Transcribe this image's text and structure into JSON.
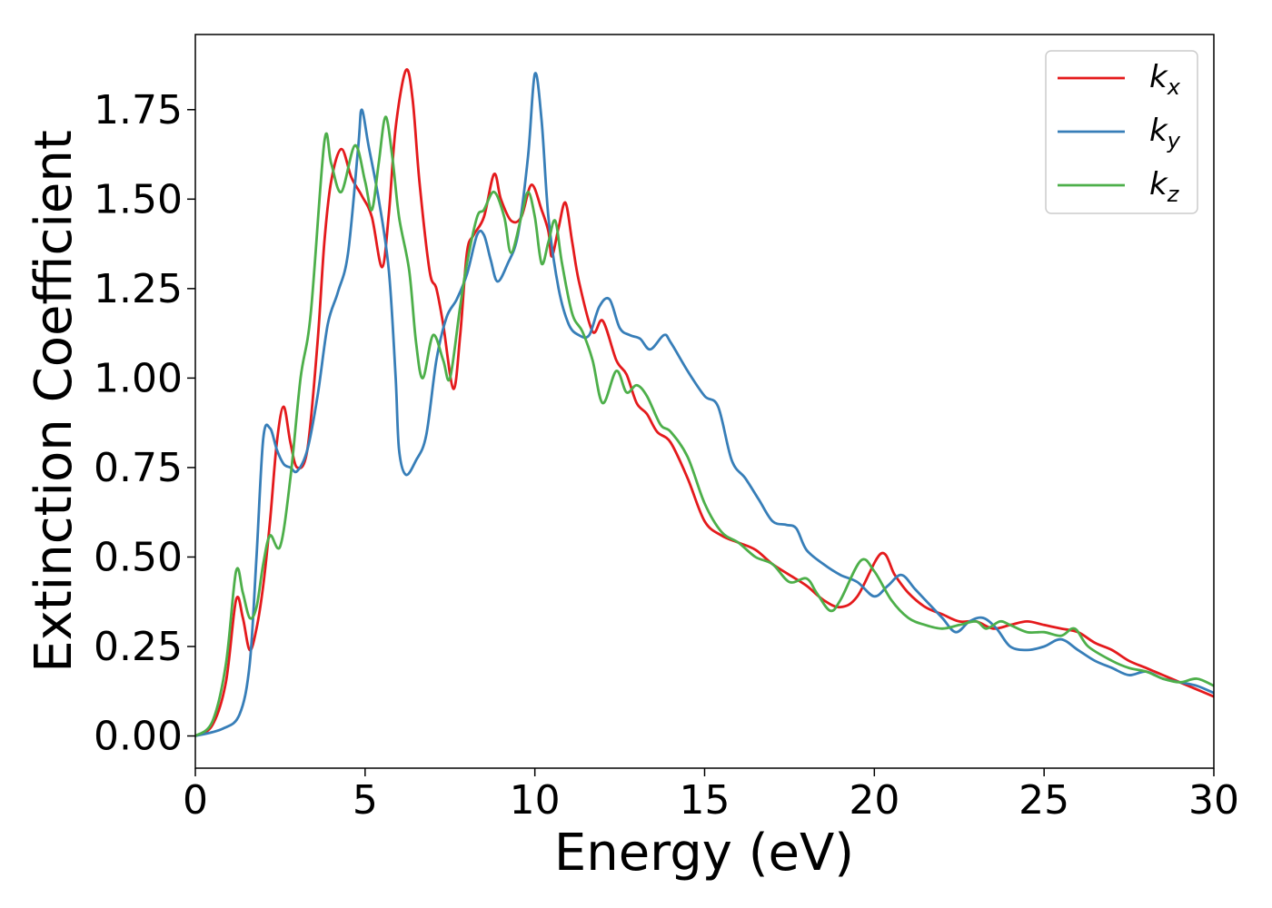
{
  "chart_data": {
    "type": "line",
    "title": "",
    "xlabel": "Energy (eV)",
    "ylabel": "Extinction Coefficient",
    "xlim": [
      0,
      30
    ],
    "ylim": [
      -0.09,
      1.96
    ],
    "xticks": [
      0,
      5,
      10,
      15,
      20,
      25,
      30
    ],
    "xtick_labels": [
      "0",
      "5",
      "10",
      "15",
      "20",
      "25",
      "30"
    ],
    "yticks": [
      0.0,
      0.25,
      0.5,
      0.75,
      1.0,
      1.25,
      1.5,
      1.75
    ],
    "ytick_labels": [
      "0.00",
      "0.25",
      "0.50",
      "0.75",
      "1.00",
      "1.25",
      "1.50",
      "1.75"
    ],
    "grid": false,
    "legend_position": "top-right",
    "series": [
      {
        "name": "k",
        "subscript": "x",
        "color": "#e41a1c",
        "points": [
          [
            0,
            0
          ],
          [
            0.5,
            0.03
          ],
          [
            0.9,
            0.15
          ],
          [
            1.2,
            0.38
          ],
          [
            1.4,
            0.33
          ],
          [
            1.6,
            0.24
          ],
          [
            1.8,
            0.3
          ],
          [
            2.0,
            0.42
          ],
          [
            2.2,
            0.6
          ],
          [
            2.4,
            0.82
          ],
          [
            2.6,
            0.92
          ],
          [
            2.8,
            0.82
          ],
          [
            3.0,
            0.75
          ],
          [
            3.3,
            0.8
          ],
          [
            3.6,
            1.1
          ],
          [
            3.8,
            1.38
          ],
          [
            4.0,
            1.55
          ],
          [
            4.3,
            1.64
          ],
          [
            4.6,
            1.56
          ],
          [
            4.9,
            1.51
          ],
          [
            5.2,
            1.45
          ],
          [
            5.5,
            1.31
          ],
          [
            5.7,
            1.46
          ],
          [
            5.9,
            1.7
          ],
          [
            6.2,
            1.86
          ],
          [
            6.4,
            1.78
          ],
          [
            6.6,
            1.55
          ],
          [
            6.9,
            1.3
          ],
          [
            7.1,
            1.25
          ],
          [
            7.3,
            1.15
          ],
          [
            7.6,
            0.97
          ],
          [
            7.8,
            1.12
          ],
          [
            8.0,
            1.35
          ],
          [
            8.2,
            1.4
          ],
          [
            8.5,
            1.45
          ],
          [
            8.8,
            1.57
          ],
          [
            9.0,
            1.5
          ],
          [
            9.3,
            1.44
          ],
          [
            9.6,
            1.45
          ],
          [
            9.9,
            1.54
          ],
          [
            10.2,
            1.47
          ],
          [
            10.4,
            1.41
          ],
          [
            10.5,
            1.34
          ],
          [
            10.7,
            1.42
          ],
          [
            10.9,
            1.49
          ],
          [
            11.1,
            1.38
          ],
          [
            11.3,
            1.27
          ],
          [
            11.7,
            1.13
          ],
          [
            12.0,
            1.16
          ],
          [
            12.4,
            1.05
          ],
          [
            12.7,
            1.01
          ],
          [
            13.0,
            0.93
          ],
          [
            13.3,
            0.9
          ],
          [
            13.6,
            0.85
          ],
          [
            14.0,
            0.82
          ],
          [
            14.5,
            0.72
          ],
          [
            15.0,
            0.6
          ],
          [
            15.5,
            0.56
          ],
          [
            16.0,
            0.54
          ],
          [
            16.5,
            0.52
          ],
          [
            17.0,
            0.48
          ],
          [
            17.5,
            0.45
          ],
          [
            18.0,
            0.42
          ],
          [
            18.5,
            0.38
          ],
          [
            19.0,
            0.36
          ],
          [
            19.5,
            0.39
          ],
          [
            20.2,
            0.51
          ],
          [
            20.6,
            0.45
          ],
          [
            21.0,
            0.4
          ],
          [
            21.5,
            0.36
          ],
          [
            22.0,
            0.34
          ],
          [
            22.5,
            0.32
          ],
          [
            23.0,
            0.32
          ],
          [
            23.5,
            0.3
          ],
          [
            24.0,
            0.31
          ],
          [
            24.5,
            0.32
          ],
          [
            25.0,
            0.31
          ],
          [
            25.5,
            0.3
          ],
          [
            26.0,
            0.29
          ],
          [
            26.5,
            0.26
          ],
          [
            27.0,
            0.24
          ],
          [
            27.5,
            0.21
          ],
          [
            28.0,
            0.19
          ],
          [
            28.5,
            0.17
          ],
          [
            29.0,
            0.15
          ],
          [
            29.5,
            0.13
          ],
          [
            30.0,
            0.11
          ]
        ]
      },
      {
        "name": "k",
        "subscript": "y",
        "color": "#377eb8",
        "points": [
          [
            0,
            0
          ],
          [
            0.8,
            0.02
          ],
          [
            1.3,
            0.06
          ],
          [
            1.6,
            0.2
          ],
          [
            1.8,
            0.5
          ],
          [
            2.0,
            0.83
          ],
          [
            2.2,
            0.86
          ],
          [
            2.4,
            0.8
          ],
          [
            2.6,
            0.76
          ],
          [
            2.8,
            0.75
          ],
          [
            3.0,
            0.74
          ],
          [
            3.3,
            0.8
          ],
          [
            3.6,
            0.95
          ],
          [
            3.9,
            1.15
          ],
          [
            4.2,
            1.24
          ],
          [
            4.5,
            1.35
          ],
          [
            4.8,
            1.65
          ],
          [
            4.9,
            1.75
          ],
          [
            5.1,
            1.65
          ],
          [
            5.4,
            1.5
          ],
          [
            5.7,
            1.3
          ],
          [
            5.9,
            1.0
          ],
          [
            6.0,
            0.8
          ],
          [
            6.2,
            0.73
          ],
          [
            6.5,
            0.77
          ],
          [
            6.8,
            0.84
          ],
          [
            7.1,
            1.05
          ],
          [
            7.4,
            1.17
          ],
          [
            7.7,
            1.22
          ],
          [
            8.0,
            1.29
          ],
          [
            8.3,
            1.4
          ],
          [
            8.5,
            1.4
          ],
          [
            8.7,
            1.33
          ],
          [
            8.9,
            1.27
          ],
          [
            9.2,
            1.32
          ],
          [
            9.5,
            1.4
          ],
          [
            9.8,
            1.62
          ],
          [
            10.0,
            1.85
          ],
          [
            10.2,
            1.72
          ],
          [
            10.4,
            1.45
          ],
          [
            10.7,
            1.25
          ],
          [
            11.0,
            1.15
          ],
          [
            11.3,
            1.12
          ],
          [
            11.6,
            1.12
          ],
          [
            11.9,
            1.2
          ],
          [
            12.2,
            1.22
          ],
          [
            12.5,
            1.14
          ],
          [
            12.8,
            1.12
          ],
          [
            13.1,
            1.11
          ],
          [
            13.4,
            1.08
          ],
          [
            13.8,
            1.12
          ],
          [
            14.0,
            1.1
          ],
          [
            14.5,
            1.02
          ],
          [
            15.0,
            0.95
          ],
          [
            15.4,
            0.92
          ],
          [
            15.8,
            0.77
          ],
          [
            16.2,
            0.72
          ],
          [
            16.6,
            0.66
          ],
          [
            17.0,
            0.6
          ],
          [
            17.4,
            0.59
          ],
          [
            17.7,
            0.58
          ],
          [
            18.0,
            0.52
          ],
          [
            18.5,
            0.48
          ],
          [
            19.0,
            0.45
          ],
          [
            19.5,
            0.43
          ],
          [
            20.0,
            0.39
          ],
          [
            20.4,
            0.42
          ],
          [
            20.8,
            0.45
          ],
          [
            21.2,
            0.41
          ],
          [
            21.6,
            0.37
          ],
          [
            22.0,
            0.33
          ],
          [
            22.4,
            0.29
          ],
          [
            22.8,
            0.32
          ],
          [
            23.2,
            0.33
          ],
          [
            23.6,
            0.3
          ],
          [
            24.0,
            0.25
          ],
          [
            24.5,
            0.24
          ],
          [
            25.0,
            0.25
          ],
          [
            25.5,
            0.27
          ],
          [
            26.0,
            0.24
          ],
          [
            26.5,
            0.21
          ],
          [
            27.0,
            0.19
          ],
          [
            27.5,
            0.17
          ],
          [
            28.0,
            0.18
          ],
          [
            28.5,
            0.16
          ],
          [
            29.0,
            0.15
          ],
          [
            29.5,
            0.14
          ],
          [
            30.0,
            0.12
          ]
        ]
      },
      {
        "name": "k",
        "subscript": "z",
        "color": "#4daf4a",
        "points": [
          [
            0,
            0
          ],
          [
            0.5,
            0.04
          ],
          [
            0.9,
            0.2
          ],
          [
            1.2,
            0.46
          ],
          [
            1.4,
            0.4
          ],
          [
            1.6,
            0.33
          ],
          [
            1.8,
            0.36
          ],
          [
            2.0,
            0.48
          ],
          [
            2.2,
            0.56
          ],
          [
            2.5,
            0.53
          ],
          [
            2.8,
            0.72
          ],
          [
            3.1,
            1.0
          ],
          [
            3.4,
            1.18
          ],
          [
            3.8,
            1.66
          ],
          [
            4.0,
            1.6
          ],
          [
            4.3,
            1.52
          ],
          [
            4.7,
            1.65
          ],
          [
            5.0,
            1.55
          ],
          [
            5.2,
            1.47
          ],
          [
            5.4,
            1.6
          ],
          [
            5.6,
            1.73
          ],
          [
            5.8,
            1.62
          ],
          [
            6.0,
            1.45
          ],
          [
            6.3,
            1.3
          ],
          [
            6.5,
            1.1
          ],
          [
            6.7,
            1.0
          ],
          [
            7.0,
            1.12
          ],
          [
            7.3,
            1.05
          ],
          [
            7.5,
            1.0
          ],
          [
            7.8,
            1.2
          ],
          [
            8.0,
            1.32
          ],
          [
            8.3,
            1.45
          ],
          [
            8.5,
            1.47
          ],
          [
            8.8,
            1.52
          ],
          [
            9.1,
            1.45
          ],
          [
            9.3,
            1.35
          ],
          [
            9.6,
            1.45
          ],
          [
            9.8,
            1.52
          ],
          [
            10.0,
            1.45
          ],
          [
            10.2,
            1.32
          ],
          [
            10.4,
            1.38
          ],
          [
            10.6,
            1.44
          ],
          [
            10.8,
            1.32
          ],
          [
            11.1,
            1.18
          ],
          [
            11.4,
            1.13
          ],
          [
            11.7,
            1.05
          ],
          [
            12.0,
            0.93
          ],
          [
            12.4,
            1.02
          ],
          [
            12.7,
            0.96
          ],
          [
            13.0,
            0.98
          ],
          [
            13.3,
            0.95
          ],
          [
            13.7,
            0.87
          ],
          [
            14.0,
            0.85
          ],
          [
            14.5,
            0.78
          ],
          [
            15.0,
            0.65
          ],
          [
            15.5,
            0.57
          ],
          [
            16.0,
            0.54
          ],
          [
            16.5,
            0.5
          ],
          [
            17.0,
            0.48
          ],
          [
            17.5,
            0.43
          ],
          [
            18.0,
            0.44
          ],
          [
            18.3,
            0.4
          ],
          [
            18.7,
            0.35
          ],
          [
            19.0,
            0.38
          ],
          [
            19.6,
            0.49
          ],
          [
            20.0,
            0.46
          ],
          [
            20.5,
            0.38
          ],
          [
            21.0,
            0.33
          ],
          [
            21.5,
            0.31
          ],
          [
            22.0,
            0.3
          ],
          [
            22.5,
            0.31
          ],
          [
            23.0,
            0.32
          ],
          [
            23.3,
            0.3
          ],
          [
            23.7,
            0.32
          ],
          [
            24.0,
            0.31
          ],
          [
            24.5,
            0.29
          ],
          [
            25.0,
            0.29
          ],
          [
            25.5,
            0.28
          ],
          [
            25.9,
            0.3
          ],
          [
            26.3,
            0.25
          ],
          [
            27.0,
            0.21
          ],
          [
            27.5,
            0.19
          ],
          [
            28.0,
            0.18
          ],
          [
            28.5,
            0.16
          ],
          [
            29.0,
            0.15
          ],
          [
            29.5,
            0.16
          ],
          [
            30.0,
            0.14
          ]
        ]
      }
    ]
  }
}
